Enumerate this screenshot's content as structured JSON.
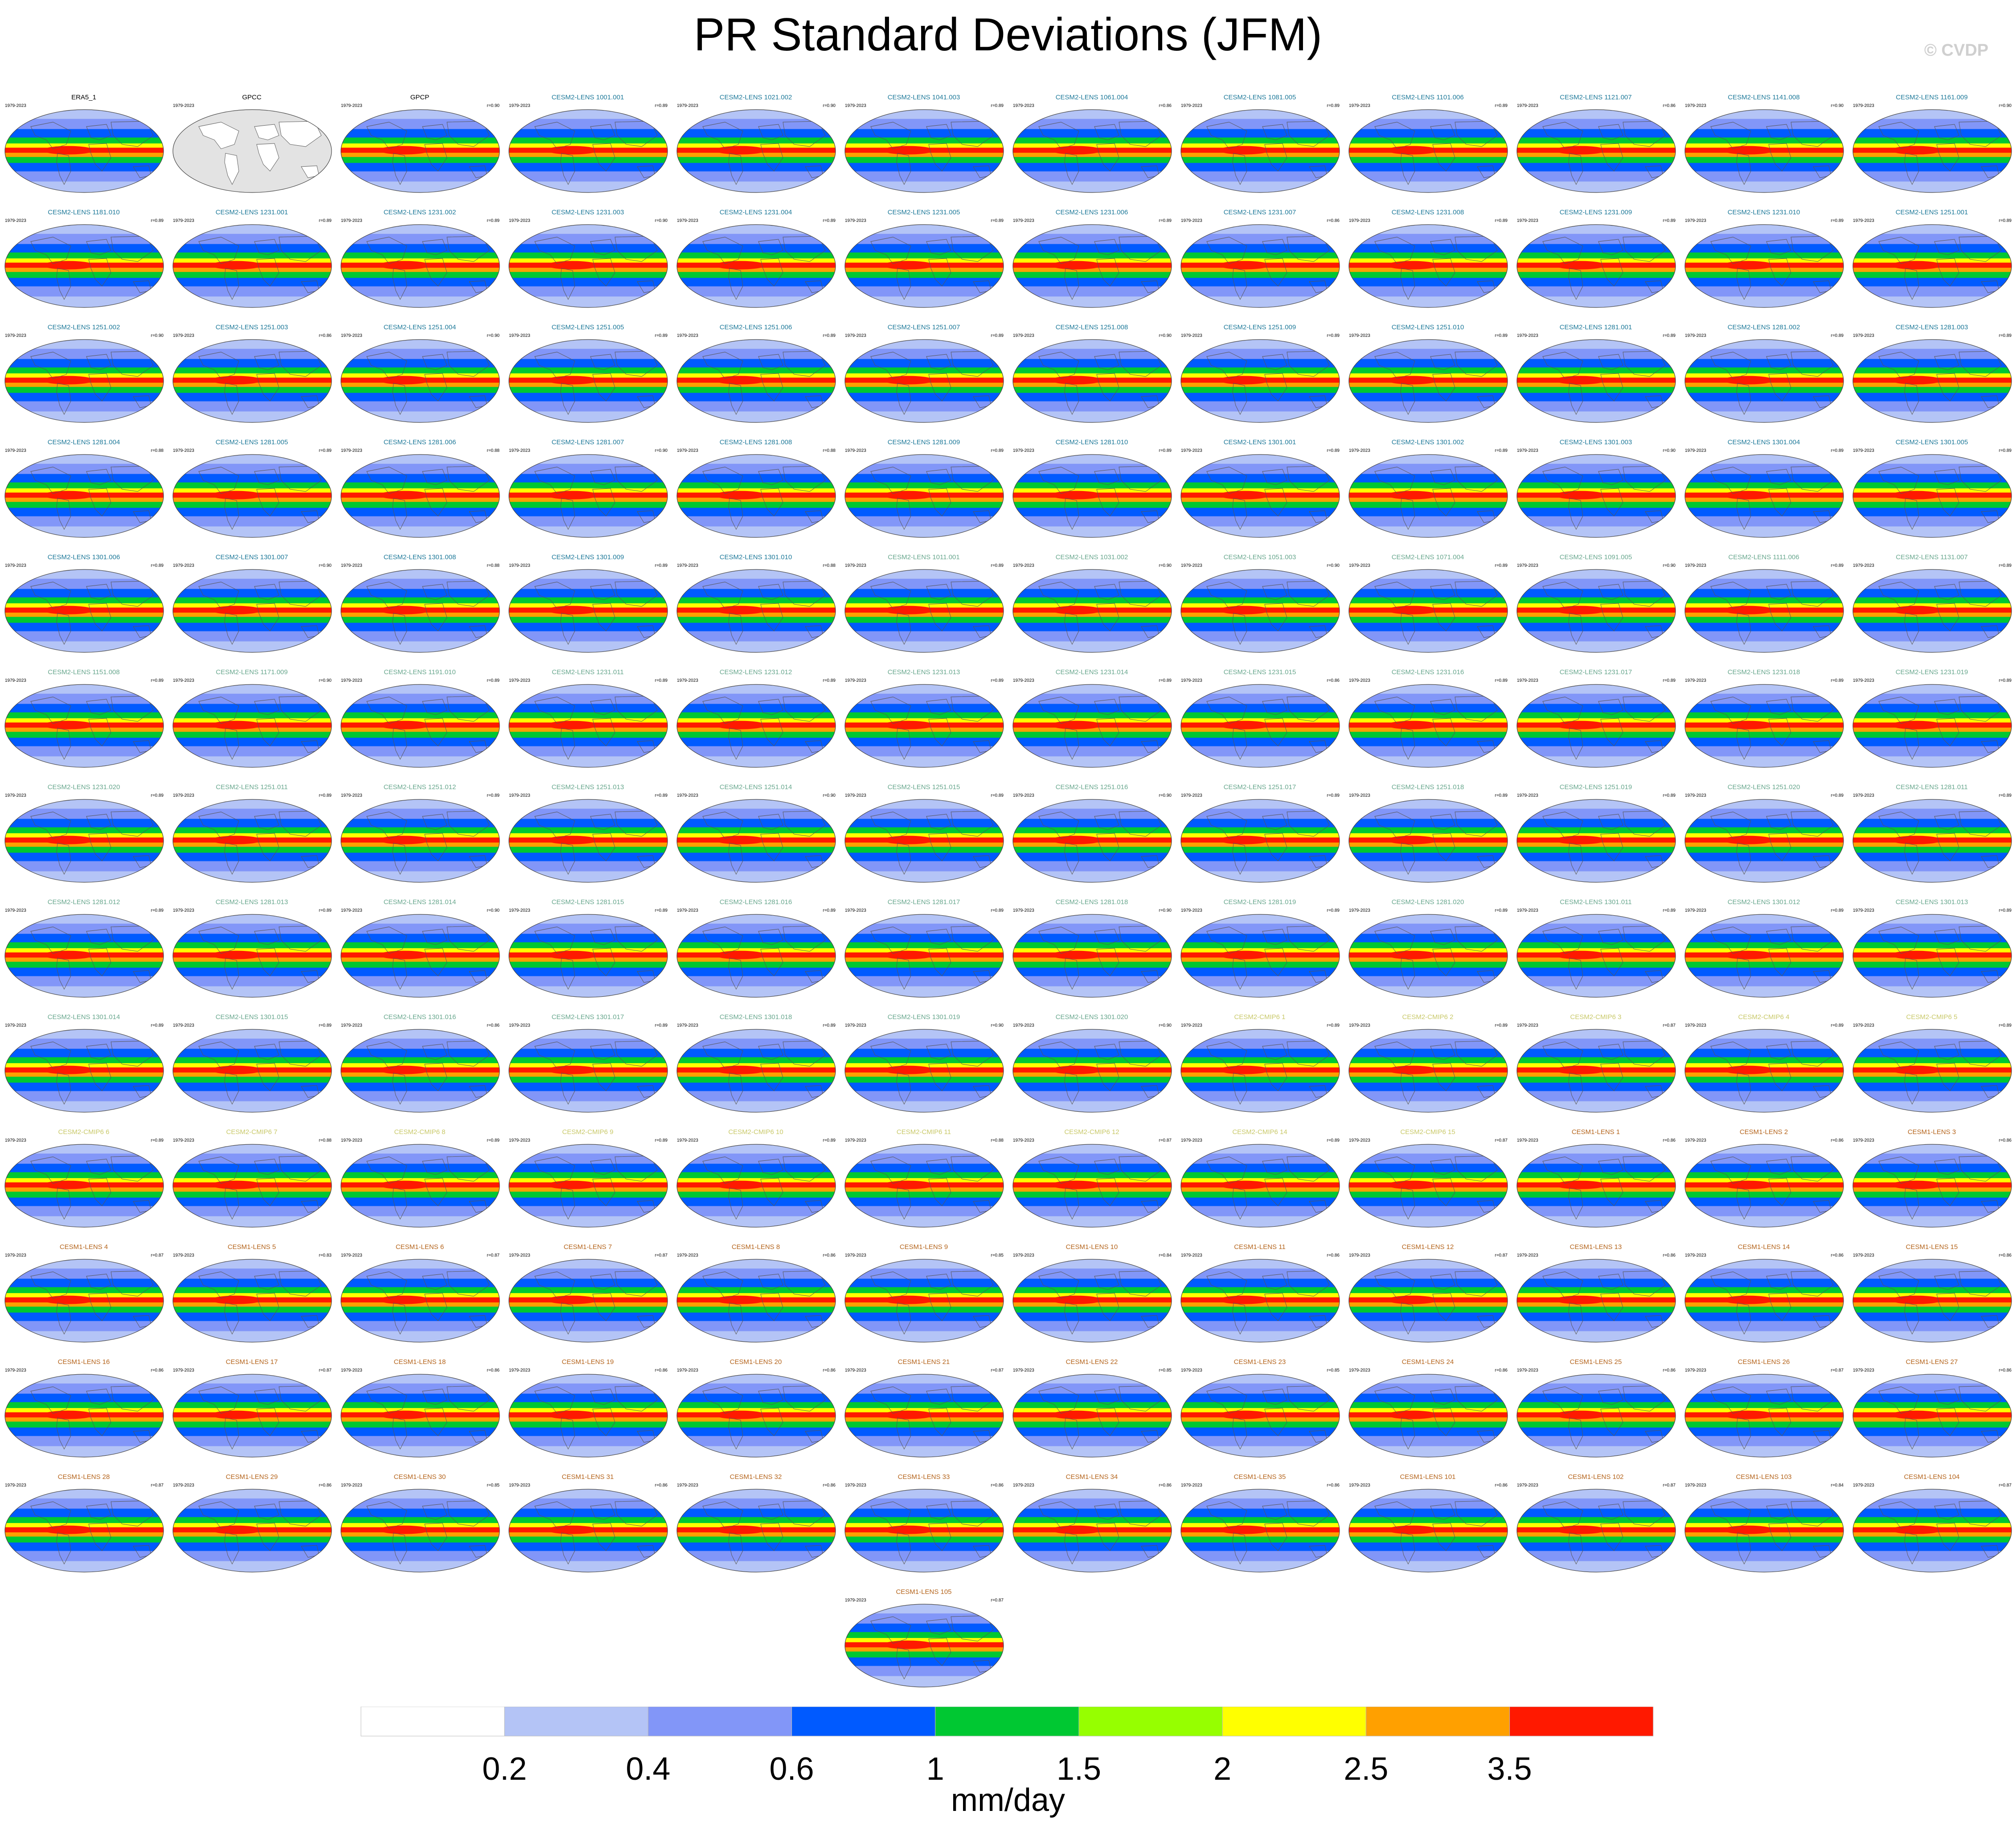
{
  "title": "PR Standard Deviations (JFM)",
  "credit": "© CVDP",
  "chart_data": {
    "type": "heatmap",
    "title": "PR Standard Deviations (JFM)",
    "period": "1979-2023",
    "units": "mm/day",
    "colorbar": {
      "boundaries": [
        "0.2",
        "0.4",
        "0.6",
        "1",
        "1.5",
        "2",
        "2.5",
        "3.5"
      ],
      "colors": [
        "#ffffff",
        "#b4c4f6",
        "#8296f8",
        "#005aff",
        "#00c832",
        "#96ff00",
        "#ffff00",
        "#ffa000",
        "#ff1900"
      ]
    },
    "panels": [
      {
        "name": "ERA5_1",
        "r": "",
        "group": "obs"
      },
      {
        "name": "GPCC",
        "r": "",
        "group": "gpcc"
      },
      {
        "name": "GPCP",
        "r": "r=0.90",
        "group": "obs"
      },
      {
        "name": "CESM2-LENS 1001.001",
        "r": "r=0.89",
        "group": "cesm2"
      },
      {
        "name": "CESM2-LENS 1021.002",
        "r": "r=0.90",
        "group": "cesm2"
      },
      {
        "name": "CESM2-LENS 1041.003",
        "r": "r=0.89",
        "group": "cesm2"
      },
      {
        "name": "CESM2-LENS 1061.004",
        "r": "r=0.86",
        "group": "cesm2"
      },
      {
        "name": "CESM2-LENS 1081.005",
        "r": "r=0.89",
        "group": "cesm2"
      },
      {
        "name": "CESM2-LENS 1101.006",
        "r": "r=0.89",
        "group": "cesm2"
      },
      {
        "name": "CESM2-LENS 1121.007",
        "r": "r=0.86",
        "group": "cesm2"
      },
      {
        "name": "CESM2-LENS 1141.008",
        "r": "r=0.90",
        "group": "cesm2"
      },
      {
        "name": "CESM2-LENS 1161.009",
        "r": "r=0.90",
        "group": "cesm2"
      },
      {
        "name": "CESM2-LENS 1181.010",
        "r": "r=0.89",
        "group": "cesm2"
      },
      {
        "name": "CESM2-LENS 1231.001",
        "r": "r=0.89",
        "group": "cesm2"
      },
      {
        "name": "CESM2-LENS 1231.002",
        "r": "r=0.89",
        "group": "cesm2"
      },
      {
        "name": "CESM2-LENS 1231.003",
        "r": "r=0.90",
        "group": "cesm2"
      },
      {
        "name": "CESM2-LENS 1231.004",
        "r": "r=0.89",
        "group": "cesm2"
      },
      {
        "name": "CESM2-LENS 1231.005",
        "r": "r=0.89",
        "group": "cesm2"
      },
      {
        "name": "CESM2-LENS 1231.006",
        "r": "r=0.89",
        "group": "cesm2"
      },
      {
        "name": "CESM2-LENS 1231.007",
        "r": "r=0.86",
        "group": "cesm2"
      },
      {
        "name": "CESM2-LENS 1231.008",
        "r": "r=0.89",
        "group": "cesm2"
      },
      {
        "name": "CESM2-LENS 1231.009",
        "r": "r=0.89",
        "group": "cesm2"
      },
      {
        "name": "CESM2-LENS 1231.010",
        "r": "r=0.89",
        "group": "cesm2"
      },
      {
        "name": "CESM2-LENS 1251.001",
        "r": "r=0.89",
        "group": "cesm2"
      },
      {
        "name": "CESM2-LENS 1251.002",
        "r": "r=0.90",
        "group": "cesm2"
      },
      {
        "name": "CESM2-LENS 1251.003",
        "r": "r=0.86",
        "group": "cesm2"
      },
      {
        "name": "CESM2-LENS 1251.004",
        "r": "r=0.90",
        "group": "cesm2"
      },
      {
        "name": "CESM2-LENS 1251.005",
        "r": "r=0.89",
        "group": "cesm2"
      },
      {
        "name": "CESM2-LENS 1251.006",
        "r": "r=0.89",
        "group": "cesm2"
      },
      {
        "name": "CESM2-LENS 1251.007",
        "r": "r=0.89",
        "group": "cesm2"
      },
      {
        "name": "CESM2-LENS 1251.008",
        "r": "r=0.90",
        "group": "cesm2"
      },
      {
        "name": "CESM2-LENS 1251.009",
        "r": "r=0.89",
        "group": "cesm2"
      },
      {
        "name": "CESM2-LENS 1251.010",
        "r": "r=0.89",
        "group": "cesm2"
      },
      {
        "name": "CESM2-LENS 1281.001",
        "r": "r=0.89",
        "group": "cesm2"
      },
      {
        "name": "CESM2-LENS 1281.002",
        "r": "r=0.89",
        "group": "cesm2"
      },
      {
        "name": "CESM2-LENS 1281.003",
        "r": "r=0.89",
        "group": "cesm2"
      },
      {
        "name": "CESM2-LENS 1281.004",
        "r": "r=0.88",
        "group": "cesm2"
      },
      {
        "name": "CESM2-LENS 1281.005",
        "r": "r=0.89",
        "group": "cesm2"
      },
      {
        "name": "CESM2-LENS 1281.006",
        "r": "r=0.88",
        "group": "cesm2"
      },
      {
        "name": "CESM2-LENS 1281.007",
        "r": "r=0.90",
        "group": "cesm2"
      },
      {
        "name": "CESM2-LENS 1281.008",
        "r": "r=0.88",
        "group": "cesm2"
      },
      {
        "name": "CESM2-LENS 1281.009",
        "r": "r=0.89",
        "group": "cesm2"
      },
      {
        "name": "CESM2-LENS 1281.010",
        "r": "r=0.89",
        "group": "cesm2"
      },
      {
        "name": "CESM2-LENS 1301.001",
        "r": "r=0.89",
        "group": "cesm2"
      },
      {
        "name": "CESM2-LENS 1301.002",
        "r": "r=0.89",
        "group": "cesm2"
      },
      {
        "name": "CESM2-LENS 1301.003",
        "r": "r=0.90",
        "group": "cesm2"
      },
      {
        "name": "CESM2-LENS 1301.004",
        "r": "r=0.89",
        "group": "cesm2"
      },
      {
        "name": "CESM2-LENS 1301.005",
        "r": "r=0.89",
        "group": "cesm2"
      },
      {
        "name": "CESM2-LENS 1301.006",
        "r": "r=0.89",
        "group": "cesm2"
      },
      {
        "name": "CESM2-LENS 1301.007",
        "r": "r=0.90",
        "group": "cesm2"
      },
      {
        "name": "CESM2-LENS 1301.008",
        "r": "r=0.88",
        "group": "cesm2"
      },
      {
        "name": "CESM2-LENS 1301.009",
        "r": "r=0.89",
        "group": "cesm2"
      },
      {
        "name": "CESM2-LENS 1301.010",
        "r": "r=0.88",
        "group": "cesm2"
      },
      {
        "name": "CESM2-LENS 1011.001",
        "r": "r=0.89",
        "group": "cesm2b"
      },
      {
        "name": "CESM2-LENS 1031.002",
        "r": "r=0.90",
        "group": "cesm2b"
      },
      {
        "name": "CESM2-LENS 1051.003",
        "r": "r=0.90",
        "group": "cesm2b"
      },
      {
        "name": "CESM2-LENS 1071.004",
        "r": "r=0.89",
        "group": "cesm2b"
      },
      {
        "name": "CESM2-LENS 1091.005",
        "r": "r=0.90",
        "group": "cesm2b"
      },
      {
        "name": "CESM2-LENS 1111.006",
        "r": "r=0.89",
        "group": "cesm2b"
      },
      {
        "name": "CESM2-LENS 1131.007",
        "r": "r=0.89",
        "group": "cesm2b"
      },
      {
        "name": "CESM2-LENS 1151.008",
        "r": "r=0.89",
        "group": "cesm2b"
      },
      {
        "name": "CESM2-LENS 1171.009",
        "r": "r=0.90",
        "group": "cesm2b"
      },
      {
        "name": "CESM2-LENS 1191.010",
        "r": "r=0.89",
        "group": "cesm2b"
      },
      {
        "name": "CESM2-LENS 1231.011",
        "r": "r=0.89",
        "group": "cesm2b"
      },
      {
        "name": "CESM2-LENS 1231.012",
        "r": "r=0.89",
        "group": "cesm2b"
      },
      {
        "name": "CESM2-LENS 1231.013",
        "r": "r=0.89",
        "group": "cesm2b"
      },
      {
        "name": "CESM2-LENS 1231.014",
        "r": "r=0.89",
        "group": "cesm2b"
      },
      {
        "name": "CESM2-LENS 1231.015",
        "r": "r=0.86",
        "group": "cesm2b"
      },
      {
        "name": "CESM2-LENS 1231.016",
        "r": "r=0.89",
        "group": "cesm2b"
      },
      {
        "name": "CESM2-LENS 1231.017",
        "r": "r=0.89",
        "group": "cesm2b"
      },
      {
        "name": "CESM2-LENS 1231.018",
        "r": "r=0.89",
        "group": "cesm2b"
      },
      {
        "name": "CESM2-LENS 1231.019",
        "r": "r=0.89",
        "group": "cesm2b"
      },
      {
        "name": "CESM2-LENS 1231.020",
        "r": "r=0.89",
        "group": "cesm2b"
      },
      {
        "name": "CESM2-LENS 1251.011",
        "r": "r=0.89",
        "group": "cesm2b"
      },
      {
        "name": "CESM2-LENS 1251.012",
        "r": "r=0.89",
        "group": "cesm2b"
      },
      {
        "name": "CESM2-LENS 1251.013",
        "r": "r=0.89",
        "group": "cesm2b"
      },
      {
        "name": "CESM2-LENS 1251.014",
        "r": "r=0.90",
        "group": "cesm2b"
      },
      {
        "name": "CESM2-LENS 1251.015",
        "r": "r=0.89",
        "group": "cesm2b"
      },
      {
        "name": "CESM2-LENS 1251.016",
        "r": "r=0.90",
        "group": "cesm2b"
      },
      {
        "name": "CESM2-LENS 1251.017",
        "r": "r=0.89",
        "group": "cesm2b"
      },
      {
        "name": "CESM2-LENS 1251.018",
        "r": "r=0.89",
        "group": "cesm2b"
      },
      {
        "name": "CESM2-LENS 1251.019",
        "r": "r=0.89",
        "group": "cesm2b"
      },
      {
        "name": "CESM2-LENS 1251.020",
        "r": "r=0.89",
        "group": "cesm2b"
      },
      {
        "name": "CESM2-LENS 1281.011",
        "r": "r=0.89",
        "group": "cesm2b"
      },
      {
        "name": "CESM2-LENS 1281.012",
        "r": "r=0.89",
        "group": "cesm2b"
      },
      {
        "name": "CESM2-LENS 1281.013",
        "r": "r=0.89",
        "group": "cesm2b"
      },
      {
        "name": "CESM2-LENS 1281.014",
        "r": "r=0.90",
        "group": "cesm2b"
      },
      {
        "name": "CESM2-LENS 1281.015",
        "r": "r=0.89",
        "group": "cesm2b"
      },
      {
        "name": "CESM2-LENS 1281.016",
        "r": "r=0.89",
        "group": "cesm2b"
      },
      {
        "name": "CESM2-LENS 1281.017",
        "r": "r=0.89",
        "group": "cesm2b"
      },
      {
        "name": "CESM2-LENS 1281.018",
        "r": "r=0.90",
        "group": "cesm2b"
      },
      {
        "name": "CESM2-LENS 1281.019",
        "r": "r=0.89",
        "group": "cesm2b"
      },
      {
        "name": "CESM2-LENS 1281.020",
        "r": "r=0.89",
        "group": "cesm2b"
      },
      {
        "name": "CESM2-LENS 1301.011",
        "r": "r=0.89",
        "group": "cesm2b"
      },
      {
        "name": "CESM2-LENS 1301.012",
        "r": "r=0.89",
        "group": "cesm2b"
      },
      {
        "name": "CESM2-LENS 1301.013",
        "r": "r=0.89",
        "group": "cesm2b"
      },
      {
        "name": "CESM2-LENS 1301.014",
        "r": "r=0.89",
        "group": "cesm2b"
      },
      {
        "name": "CESM2-LENS 1301.015",
        "r": "r=0.89",
        "group": "cesm2b"
      },
      {
        "name": "CESM2-LENS 1301.016",
        "r": "r=0.86",
        "group": "cesm2b"
      },
      {
        "name": "CESM2-LENS 1301.017",
        "r": "r=0.89",
        "group": "cesm2b"
      },
      {
        "name": "CESM2-LENS 1301.018",
        "r": "r=0.89",
        "group": "cesm2b"
      },
      {
        "name": "CESM2-LENS 1301.019",
        "r": "r=0.90",
        "group": "cesm2b"
      },
      {
        "name": "CESM2-LENS 1301.020",
        "r": "r=0.90",
        "group": "cesm2b"
      },
      {
        "name": "CESM2-CMIP6 1",
        "r": "r=0.89",
        "group": "cmip6"
      },
      {
        "name": "CESM2-CMIP6 2",
        "r": "r=0.89",
        "group": "cmip6"
      },
      {
        "name": "CESM2-CMIP6 3",
        "r": "r=0.87",
        "group": "cmip6"
      },
      {
        "name": "CESM2-CMIP6 4",
        "r": "r=0.89",
        "group": "cmip6"
      },
      {
        "name": "CESM2-CMIP6 5",
        "r": "r=0.89",
        "group": "cmip6"
      },
      {
        "name": "CESM2-CMIP6 6",
        "r": "r=0.89",
        "group": "cmip6"
      },
      {
        "name": "CESM2-CMIP6 7",
        "r": "r=0.88",
        "group": "cmip6"
      },
      {
        "name": "CESM2-CMIP6 8",
        "r": "r=0.89",
        "group": "cmip6"
      },
      {
        "name": "CESM2-CMIP6 9",
        "r": "r=0.89",
        "group": "cmip6"
      },
      {
        "name": "CESM2-CMIP6 10",
        "r": "r=0.89",
        "group": "cmip6"
      },
      {
        "name": "CESM2-CMIP6 11",
        "r": "r=0.88",
        "group": "cmip6"
      },
      {
        "name": "CESM2-CMIP6 12",
        "r": "r=0.87",
        "group": "cmip6"
      },
      {
        "name": "CESM2-CMIP6 14",
        "r": "r=0.89",
        "group": "cmip6"
      },
      {
        "name": "CESM2-CMIP6 15",
        "r": "r=0.87",
        "group": "cmip6"
      },
      {
        "name": "CESM1-LENS 1",
        "r": "r=0.86",
        "group": "cesm1"
      },
      {
        "name": "CESM1-LENS 2",
        "r": "r=0.86",
        "group": "cesm1"
      },
      {
        "name": "CESM1-LENS 3",
        "r": "r=0.86",
        "group": "cesm1"
      },
      {
        "name": "CESM1-LENS 4",
        "r": "r=0.87",
        "group": "cesm1"
      },
      {
        "name": "CESM1-LENS 5",
        "r": "r=0.83",
        "group": "cesm1"
      },
      {
        "name": "CESM1-LENS 6",
        "r": "r=0.87",
        "group": "cesm1"
      },
      {
        "name": "CESM1-LENS 7",
        "r": "r=0.87",
        "group": "cesm1"
      },
      {
        "name": "CESM1-LENS 8",
        "r": "r=0.86",
        "group": "cesm1"
      },
      {
        "name": "CESM1-LENS 9",
        "r": "r=0.85",
        "group": "cesm1"
      },
      {
        "name": "CESM1-LENS 10",
        "r": "r=0.84",
        "group": "cesm1"
      },
      {
        "name": "CESM1-LENS 11",
        "r": "r=0.86",
        "group": "cesm1"
      },
      {
        "name": "CESM1-LENS 12",
        "r": "r=0.87",
        "group": "cesm1"
      },
      {
        "name": "CESM1-LENS 13",
        "r": "r=0.86",
        "group": "cesm1"
      },
      {
        "name": "CESM1-LENS 14",
        "r": "r=0.86",
        "group": "cesm1"
      },
      {
        "name": "CESM1-LENS 15",
        "r": "r=0.86",
        "group": "cesm1"
      },
      {
        "name": "CESM1-LENS 16",
        "r": "r=0.86",
        "group": "cesm1"
      },
      {
        "name": "CESM1-LENS 17",
        "r": "r=0.87",
        "group": "cesm1"
      },
      {
        "name": "CESM1-LENS 18",
        "r": "r=0.86",
        "group": "cesm1"
      },
      {
        "name": "CESM1-LENS 19",
        "r": "r=0.86",
        "group": "cesm1"
      },
      {
        "name": "CESM1-LENS 20",
        "r": "r=0.86",
        "group": "cesm1"
      },
      {
        "name": "CESM1-LENS 21",
        "r": "r=0.87",
        "group": "cesm1"
      },
      {
        "name": "CESM1-LENS 22",
        "r": "r=0.85",
        "group": "cesm1"
      },
      {
        "name": "CESM1-LENS 23",
        "r": "r=0.85",
        "group": "cesm1"
      },
      {
        "name": "CESM1-LENS 24",
        "r": "r=0.86",
        "group": "cesm1"
      },
      {
        "name": "CESM1-LENS 25",
        "r": "r=0.86",
        "group": "cesm1"
      },
      {
        "name": "CESM1-LENS 26",
        "r": "r=0.87",
        "group": "cesm1"
      },
      {
        "name": "CESM1-LENS 27",
        "r": "r=0.86",
        "group": "cesm1"
      },
      {
        "name": "CESM1-LENS 28",
        "r": "r=0.87",
        "group": "cesm1"
      },
      {
        "name": "CESM1-LENS 29",
        "r": "r=0.86",
        "group": "cesm1"
      },
      {
        "name": "CESM1-LENS 30",
        "r": "r=0.85",
        "group": "cesm1"
      },
      {
        "name": "CESM1-LENS 31",
        "r": "r=0.86",
        "group": "cesm1"
      },
      {
        "name": "CESM1-LENS 32",
        "r": "r=0.86",
        "group": "cesm1"
      },
      {
        "name": "CESM1-LENS 33",
        "r": "r=0.86",
        "group": "cesm1"
      },
      {
        "name": "CESM1-LENS 34",
        "r": "r=0.86",
        "group": "cesm1"
      },
      {
        "name": "CESM1-LENS 35",
        "r": "r=0.86",
        "group": "cesm1"
      },
      {
        "name": "CESM1-LENS 101",
        "r": "r=0.86",
        "group": "cesm1"
      },
      {
        "name": "CESM1-LENS 102",
        "r": "r=0.87",
        "group": "cesm1"
      },
      {
        "name": "CESM1-LENS 103",
        "r": "r=0.84",
        "group": "cesm1"
      },
      {
        "name": "CESM1-LENS 104",
        "r": "r=0.87",
        "group": "cesm1"
      },
      {
        "name": "CESM1-LENS 105",
        "r": "r=0.87",
        "group": "cesm1"
      }
    ]
  },
  "group_colors": {
    "obs": "#000000",
    "gpcc": "#000000",
    "cesm2": "#1f7a9a",
    "cesm2b": "#6aa88f",
    "cmip6": "#c9c96a",
    "cesm1": "#b5651d"
  }
}
